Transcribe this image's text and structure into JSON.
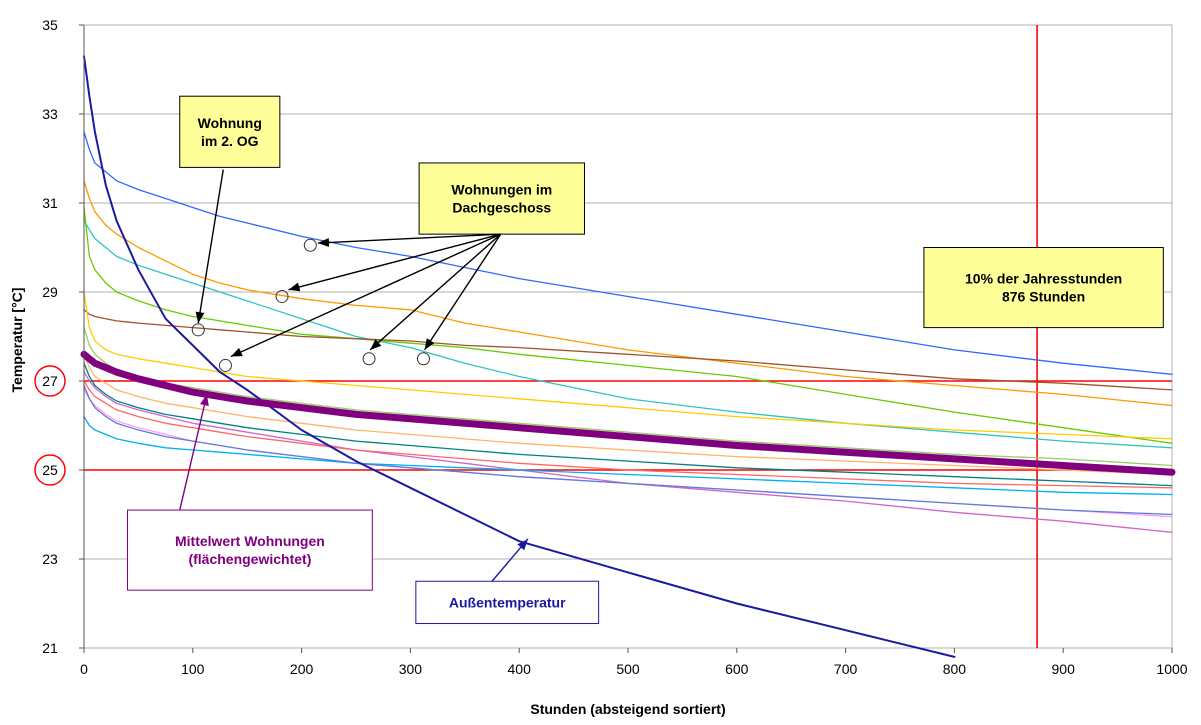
{
  "chart_data": {
    "type": "line",
    "title": "",
    "xlabel": "Stunden (absteigend sortiert)",
    "ylabel": "Temperatur [°C]",
    "xlim": [
      0,
      1000
    ],
    "ylim": [
      21,
      35
    ],
    "x_ticks": [
      0,
      100,
      200,
      300,
      400,
      500,
      600,
      700,
      800,
      900,
      1000
    ],
    "y_ticks": [
      21,
      23,
      25,
      27,
      29,
      31,
      33,
      35
    ],
    "grid": "horizontal",
    "x": [
      0,
      5,
      10,
      20,
      30,
      50,
      75,
      100,
      125,
      150,
      200,
      250,
      300,
      350,
      400,
      500,
      600,
      700,
      800,
      900,
      1000
    ],
    "reference_lines": [
      {
        "axis": "y",
        "value": 27,
        "color": "#ff0000"
      },
      {
        "axis": "y",
        "value": 25,
        "color": "#ff0000"
      },
      {
        "axis": "x",
        "value": 876,
        "color": "#ff0000"
      }
    ],
    "highlighted_y_ticks": [
      27,
      25
    ],
    "series": [
      {
        "color": "#1a1aa0",
        "width": 2,
        "values": [
          34.3,
          33.4,
          32.6,
          31.4,
          30.6,
          29.5,
          28.4,
          27.8,
          27.2,
          26.8,
          25.9,
          25.2,
          24.6,
          24.0,
          23.4,
          22.7,
          22.0,
          21.4,
          20.8,
          null,
          null
        ]
      },
      {
        "color": "#3366ff",
        "width": 1.3,
        "values": [
          32.6,
          32.2,
          31.9,
          31.7,
          31.5,
          31.3,
          31.1,
          30.9,
          30.7,
          30.55,
          30.25,
          30.0,
          29.8,
          29.55,
          29.3,
          28.9,
          28.5,
          28.1,
          27.7,
          27.4,
          27.15
        ]
      },
      {
        "color": "#ff9900",
        "width": 1.3,
        "values": [
          31.5,
          31.1,
          30.8,
          30.5,
          30.3,
          30.0,
          29.7,
          29.4,
          29.2,
          29.05,
          28.85,
          28.7,
          28.6,
          28.3,
          28.1,
          27.7,
          27.4,
          27.1,
          26.9,
          26.7,
          26.45
        ]
      },
      {
        "color": "#2ec4c4",
        "width": 1.3,
        "values": [
          30.6,
          30.4,
          30.2,
          30.0,
          29.8,
          29.6,
          29.4,
          29.2,
          29.0,
          28.8,
          28.4,
          28.0,
          27.75,
          27.4,
          27.1,
          26.6,
          26.3,
          26.05,
          25.85,
          25.65,
          25.5
        ]
      },
      {
        "color": "#66cc00",
        "width": 1.3,
        "values": [
          30.9,
          29.8,
          29.5,
          29.2,
          29.0,
          28.8,
          28.6,
          28.45,
          28.35,
          28.25,
          28.05,
          27.95,
          27.85,
          27.75,
          27.6,
          27.35,
          27.1,
          26.7,
          26.3,
          25.95,
          25.6
        ]
      },
      {
        "color": "#a0522d",
        "width": 1.3,
        "values": [
          28.6,
          28.5,
          28.45,
          28.4,
          28.35,
          28.3,
          28.25,
          28.2,
          28.15,
          28.1,
          28.0,
          27.95,
          27.9,
          27.8,
          27.75,
          27.6,
          27.45,
          27.25,
          27.05,
          26.95,
          26.8
        ]
      },
      {
        "color": "#ffcc00",
        "width": 1.3,
        "values": [
          29.0,
          28.2,
          27.9,
          27.7,
          27.6,
          27.5,
          27.4,
          27.3,
          27.2,
          27.1,
          27.0,
          26.9,
          26.8,
          26.7,
          26.6,
          26.4,
          26.2,
          26.05,
          25.9,
          25.8,
          25.7
        ]
      },
      {
        "color": "#800080",
        "width": 7,
        "values": [
          27.6,
          27.5,
          27.4,
          27.3,
          27.2,
          27.05,
          26.9,
          26.75,
          26.65,
          26.55,
          26.4,
          26.25,
          26.15,
          26.05,
          25.95,
          25.75,
          25.55,
          25.4,
          25.25,
          25.1,
          24.95
        ]
      },
      {
        "color": "#cc66cc",
        "width": 1.3,
        "values": [
          27.2,
          27.0,
          26.85,
          26.65,
          26.5,
          26.35,
          26.2,
          26.05,
          25.95,
          25.85,
          25.65,
          25.45,
          25.3,
          25.15,
          25.0,
          24.7,
          24.5,
          24.3,
          24.05,
          23.85,
          23.6
        ]
      },
      {
        "color": "#ff99ff",
        "width": 1.3,
        "values": [
          26.8,
          26.6,
          26.45,
          26.25,
          26.1,
          25.95,
          25.8,
          25.65,
          25.55,
          25.45,
          25.3,
          25.15,
          25.05,
          24.95,
          24.85,
          24.7,
          24.55,
          24.4,
          24.25,
          24.1,
          23.95
        ]
      },
      {
        "color": "#00b0f0",
        "width": 1.3,
        "values": [
          26.2,
          26.0,
          25.9,
          25.8,
          25.7,
          25.6,
          25.5,
          25.45,
          25.4,
          25.35,
          25.25,
          25.15,
          25.1,
          25.05,
          25.0,
          24.9,
          24.8,
          24.7,
          24.6,
          24.5,
          24.45
        ]
      },
      {
        "color": "#5b7fd6",
        "width": 1.3,
        "values": [
          26.9,
          26.6,
          26.4,
          26.2,
          26.05,
          25.9,
          25.75,
          25.65,
          25.55,
          25.45,
          25.3,
          25.15,
          25.05,
          24.95,
          24.85,
          24.7,
          24.55,
          24.4,
          24.25,
          24.1,
          24.0
        ]
      },
      {
        "color": "#99cc66",
        "width": 1.3,
        "values": [
          28.2,
          27.8,
          27.6,
          27.4,
          27.25,
          27.1,
          26.95,
          26.85,
          26.75,
          26.65,
          26.5,
          26.35,
          26.25,
          26.15,
          26.05,
          25.85,
          25.65,
          25.5,
          25.35,
          25.25,
          25.1
        ]
      },
      {
        "color": "#ffb366",
        "width": 1.3,
        "values": [
          27.6,
          27.3,
          27.1,
          26.95,
          26.8,
          26.65,
          26.5,
          26.4,
          26.3,
          26.2,
          26.05,
          25.9,
          25.8,
          25.7,
          25.6,
          25.45,
          25.3,
          25.2,
          25.1,
          25.0,
          24.9
        ]
      },
      {
        "color": "#008080",
        "width": 1.3,
        "values": [
          27.4,
          27.1,
          26.9,
          26.7,
          26.55,
          26.4,
          26.25,
          26.15,
          26.05,
          25.95,
          25.8,
          25.65,
          25.55,
          25.45,
          25.35,
          25.2,
          25.05,
          24.95,
          24.85,
          24.75,
          24.65
        ]
      },
      {
        "color": "#ff6666",
        "width": 1.3,
        "values": [
          27.0,
          26.8,
          26.65,
          26.5,
          26.35,
          26.2,
          26.05,
          25.95,
          25.85,
          25.75,
          25.6,
          25.45,
          25.35,
          25.25,
          25.15,
          25.0,
          24.9,
          24.8,
          24.7,
          24.65,
          24.6
        ]
      }
    ],
    "markers": [
      {
        "x": 105,
        "y": 28.15
      },
      {
        "x": 130,
        "y": 27.35
      },
      {
        "x": 182,
        "y": 28.9
      },
      {
        "x": 208,
        "y": 30.05
      },
      {
        "x": 262,
        "y": 27.5
      },
      {
        "x": 312,
        "y": 27.5
      }
    ],
    "annotations": [
      {
        "id": "og2",
        "lines": [
          "Wohnung",
          "im 2. OG"
        ],
        "text_color": "#000000",
        "bg": "#ffff99",
        "border": "#000000",
        "box": {
          "x": 88,
          "y": 33.4,
          "w": 92,
          "h": 1.6
        },
        "arrow_color": "#000000",
        "arrow_from": {
          "x": 128,
          "y": 31.75
        },
        "arrow_to": [
          {
            "x": 105,
            "y": 28.3
          }
        ]
      },
      {
        "id": "dach",
        "lines": [
          "Wohnungen im",
          "Dachgeschoss"
        ],
        "text_color": "#000000",
        "bg": "#ffff99",
        "border": "#000000",
        "box": {
          "x": 308,
          "y": 31.9,
          "w": 152,
          "h": 1.6
        },
        "arrow_color": "#000000",
        "arrow_from": {
          "x": 383,
          "y": 30.3
        },
        "arrow_to": [
          {
            "x": 215,
            "y": 30.1
          },
          {
            "x": 188,
            "y": 29.05
          },
          {
            "x": 135,
            "y": 27.55
          },
          {
            "x": 263,
            "y": 27.7
          },
          {
            "x": 313,
            "y": 27.7
          }
        ]
      },
      {
        "id": "jahr",
        "lines": [
          "10% der Jahresstunden",
          "876 Stunden"
        ],
        "text_color": "#000000",
        "bg": "#ffff99",
        "border": "#000000",
        "box": {
          "x": 772,
          "y": 30.0,
          "w": 220,
          "h": 1.8
        },
        "arrow_color": null,
        "arrow_from": null,
        "arrow_to": []
      },
      {
        "id": "mittel",
        "lines": [
          "Mittelwert Wohnungen",
          "(flächengewichtet)"
        ],
        "text_color": "#800080",
        "bg": "#ffffff",
        "border": "#800080",
        "box": {
          "x": 40,
          "y": 24.1,
          "w": 225,
          "h": 1.8
        },
        "arrow_color": "#800080",
        "arrow_from": {
          "x": 88,
          "y": 24.1
        },
        "arrow_to": [
          {
            "x": 113,
            "y": 26.7
          }
        ]
      },
      {
        "id": "aussen",
        "lines": [
          "Außentemperatur"
        ],
        "text_color": "#1a1aa0",
        "bg": "#ffffff",
        "border": "#1a1aa0",
        "box": {
          "x": 305,
          "y": 22.5,
          "w": 168,
          "h": 0.95
        },
        "arrow_color": "#1a1aa0",
        "arrow_from": {
          "x": 375,
          "y": 22.5
        },
        "arrow_to": [
          {
            "x": 408,
            "y": 23.45
          }
        ]
      }
    ]
  }
}
